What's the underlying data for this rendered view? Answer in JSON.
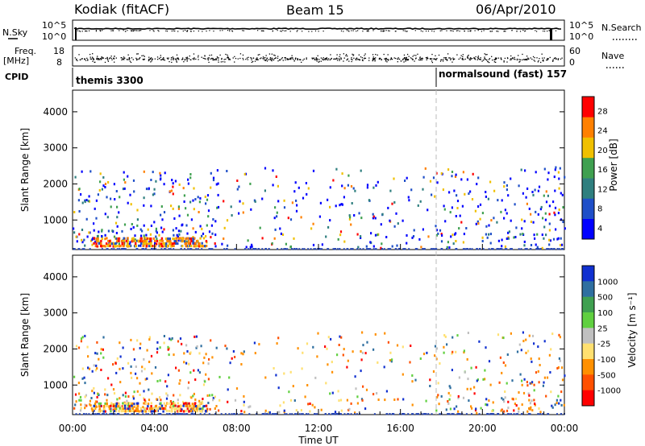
{
  "header": {
    "station": "Kodiak (fitACF)",
    "beam": "Beam 15",
    "date": "06/Apr/2010"
  },
  "top_panels": {
    "nsky_label": "N.Sky",
    "nsky_ticks": [
      "10^5",
      "10^0"
    ],
    "nsearch_label": "N.Search",
    "nsearch_ticks": [
      "10^5",
      "10^0"
    ],
    "freq_label": "Freq.",
    "freq_unit": "[MHz]",
    "freq_ticks": [
      "18",
      "8"
    ],
    "nave_label": "Nave",
    "nave_ticks": [
      "60",
      "0"
    ],
    "cpid_label": "CPID",
    "cpid_programs": [
      {
        "name": "themis 3300",
        "start_hour": 0.0
      },
      {
        "name": "normalsound (fast) 157",
        "start_hour": 18.0
      }
    ]
  },
  "chart_data": [
    {
      "type": "heatmap",
      "panel": "power",
      "xlabel": "Time UT",
      "ylabel": "Slant Range [km]",
      "xlim": [
        0,
        24
      ],
      "ylim": [
        180,
        4600
      ],
      "yticks": [
        "1000",
        "2000",
        "3000",
        "4000"
      ],
      "colorbar": {
        "label": "Power [dB]",
        "ticks": [
          "4",
          "8",
          "12",
          "16",
          "20",
          "24",
          "28"
        ],
        "range": [
          0,
          30
        ],
        "colors": [
          "#0000ff",
          "#1f4fc8",
          "#2f7f7f",
          "#3fa050",
          "#f0c000",
          "#ff8000",
          "#ff0000"
        ]
      }
    },
    {
      "type": "heatmap",
      "panel": "velocity",
      "xlabel": "Time UT",
      "ylabel": "Slant Range [km]",
      "xlim": [
        0,
        24
      ],
      "ylim": [
        180,
        4600
      ],
      "yticks": [
        "1000",
        "2000",
        "3000",
        "4000"
      ],
      "xticks": [
        "00:00",
        "04:00",
        "08:00",
        "12:00",
        "16:00",
        "20:00",
        "00:00"
      ],
      "colorbar": {
        "label": "Velocity [m s⁻¹]",
        "ticks": [
          "1000",
          "500",
          "100",
          "25",
          "-25",
          "-100",
          "-500",
          "-1000"
        ],
        "colors": [
          "#1030d0",
          "#2f6fa0",
          "#3fa050",
          "#60d040",
          "#c0c0c0",
          "#ffe070",
          "#ff9000",
          "#ff5000",
          "#ff0000"
        ]
      }
    }
  ]
}
